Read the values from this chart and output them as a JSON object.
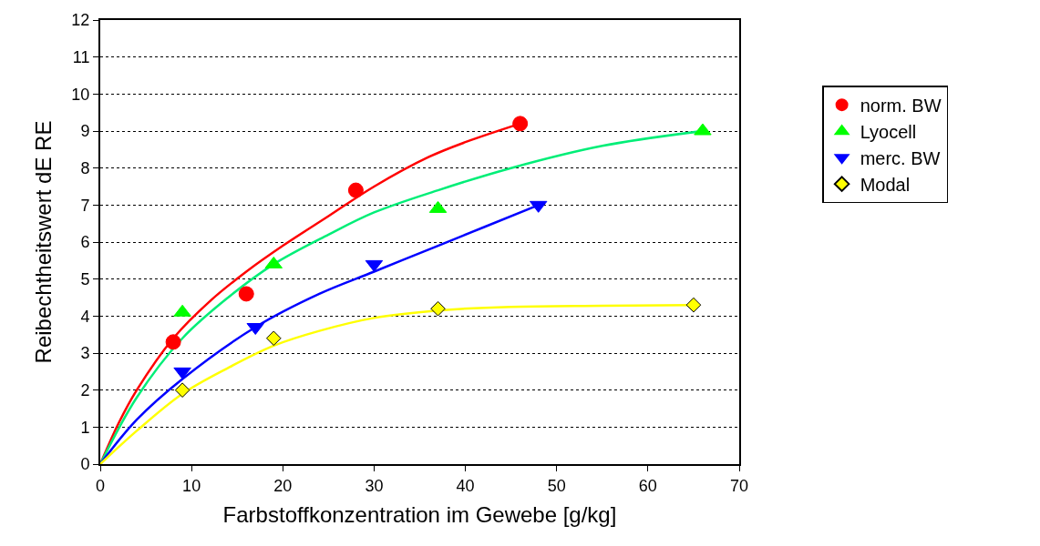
{
  "chart_data": {
    "type": "scatter",
    "xlabel": "Farbstoffkonzentration im Gewebe [g/kg]",
    "ylabel": "Reibechtheitswert dE RE",
    "xlim": [
      0,
      70
    ],
    "xticks": [
      0,
      10,
      20,
      30,
      40,
      50,
      60,
      70
    ],
    "ylim": [
      0,
      12
    ],
    "yticks": [
      0,
      1,
      2,
      3,
      4,
      5,
      6,
      7,
      8,
      9,
      10,
      11,
      12
    ],
    "grid": "y",
    "legend": "right",
    "series": [
      {
        "name": "norm. BW",
        "color": "#ff0000",
        "marker": "circle",
        "x": [
          8,
          16,
          28,
          46
        ],
        "values": [
          3.3,
          4.6,
          7.4,
          9.2
        ]
      },
      {
        "name": "Lyocell",
        "color": "#00ff00",
        "marker": "triangle",
        "x": [
          9,
          19,
          37,
          66
        ],
        "values": [
          4.1,
          5.4,
          6.9,
          9.0
        ]
      },
      {
        "name": "merc. BW",
        "color": "#0000ff",
        "marker": "triangle-down",
        "x": [
          9,
          17,
          30,
          48
        ],
        "values": [
          2.5,
          3.7,
          5.4,
          7.0
        ]
      },
      {
        "name": "Modal",
        "color": "#ffff00",
        "marker": "diamond",
        "x": [
          9,
          19,
          37,
          65
        ],
        "values": [
          2.0,
          3.4,
          4.2,
          4.3
        ]
      },
      {
        "type": "line",
        "color": "#ff0000",
        "x": [
          0,
          2,
          4,
          8,
          12,
          16,
          20,
          25,
          30,
          36,
          40,
          46
        ],
        "values": [
          0,
          1.1,
          2.0,
          3.4,
          4.4,
          5.2,
          5.9,
          6.7,
          7.5,
          8.3,
          8.7,
          9.2
        ]
      },
      {
        "type": "line",
        "color": "#00ee77",
        "x": [
          0,
          4,
          9,
          14,
          19,
          25,
          30,
          37,
          45,
          55,
          66
        ],
        "values": [
          0,
          1.8,
          3.4,
          4.5,
          5.4,
          6.2,
          6.8,
          7.4,
          8.0,
          8.6,
          9.0
        ]
      },
      {
        "type": "line",
        "color": "#0000ff",
        "x": [
          0,
          4,
          9,
          17,
          24,
          30,
          37,
          42,
          48
        ],
        "values": [
          0,
          1.2,
          2.3,
          3.7,
          4.6,
          5.2,
          5.9,
          6.4,
          7.0
        ]
      },
      {
        "type": "line",
        "color": "#ffff00",
        "x": [
          0,
          4,
          9,
          14,
          19,
          24,
          30,
          37,
          45,
          55,
          65
        ],
        "values": [
          0,
          0.9,
          1.9,
          2.6,
          3.2,
          3.6,
          3.95,
          4.15,
          4.25,
          4.28,
          4.3
        ]
      }
    ]
  }
}
